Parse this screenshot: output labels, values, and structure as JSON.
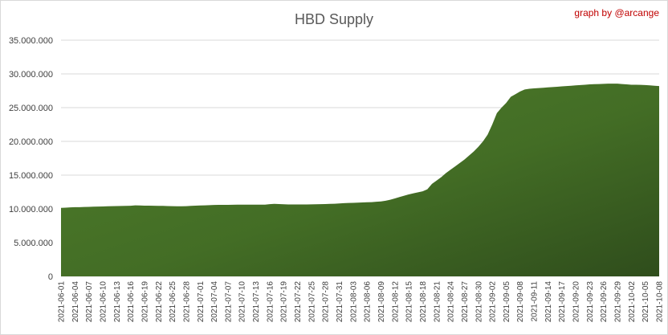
{
  "chart_data": {
    "type": "area",
    "title": "HBD Supply",
    "credit": "graph by @arcange",
    "xlabel": "",
    "ylabel": "",
    "ylim": [
      0,
      35000000
    ],
    "y_ticks": [
      0,
      5000000,
      10000000,
      15000000,
      20000000,
      25000000,
      30000000,
      35000000
    ],
    "y_tick_labels": [
      "0",
      "5.000.000",
      "10.000.000",
      "15.000.000",
      "20.000.000",
      "25.000.000",
      "30.000.000",
      "35.000.000"
    ],
    "grid": true,
    "legend": "none",
    "colors": {
      "fill_top": "#4e7d2b",
      "fill_bottom": "#2f4d1c",
      "gridline": "#d9d9d9",
      "title": "#595959",
      "credit": "#c00000"
    },
    "x_tick_labels": [
      "2021-06-01",
      "2021-06-04",
      "2021-06-07",
      "2021-06-10",
      "2021-06-13",
      "2021-06-16",
      "2021-06-19",
      "2021-06-22",
      "2021-06-25",
      "2021-06-28",
      "2021-07-01",
      "2021-07-04",
      "2021-07-07",
      "2021-07-10",
      "2021-07-13",
      "2021-07-16",
      "2021-07-19",
      "2021-07-22",
      "2021-07-25",
      "2021-07-28",
      "2021-07-31",
      "2021-08-03",
      "2021-08-06",
      "2021-08-09",
      "2021-08-12",
      "2021-08-15",
      "2021-08-18",
      "2021-08-21",
      "2021-08-24",
      "2021-08-27",
      "2021-08-30",
      "2021-09-02",
      "2021-09-05",
      "2021-09-08",
      "2021-09-11",
      "2021-09-14",
      "2021-09-17",
      "2021-09-20",
      "2021-09-23",
      "2021-09-26",
      "2021-09-29",
      "2021-10-02",
      "2021-10-05",
      "2021-10-08"
    ],
    "x": [
      "2021-06-01",
      "2021-06-02",
      "2021-06-03",
      "2021-06-04",
      "2021-06-05",
      "2021-06-06",
      "2021-06-07",
      "2021-06-08",
      "2021-06-09",
      "2021-06-10",
      "2021-06-11",
      "2021-06-12",
      "2021-06-13",
      "2021-06-14",
      "2021-06-15",
      "2021-06-16",
      "2021-06-17",
      "2021-06-18",
      "2021-06-19",
      "2021-06-20",
      "2021-06-21",
      "2021-06-22",
      "2021-06-23",
      "2021-06-24",
      "2021-06-25",
      "2021-06-26",
      "2021-06-27",
      "2021-06-28",
      "2021-06-29",
      "2021-06-30",
      "2021-07-01",
      "2021-07-02",
      "2021-07-03",
      "2021-07-04",
      "2021-07-05",
      "2021-07-06",
      "2021-07-07",
      "2021-07-08",
      "2021-07-09",
      "2021-07-10",
      "2021-07-11",
      "2021-07-12",
      "2021-07-13",
      "2021-07-14",
      "2021-07-15",
      "2021-07-16",
      "2021-07-17",
      "2021-07-18",
      "2021-07-19",
      "2021-07-20",
      "2021-07-21",
      "2021-07-22",
      "2021-07-23",
      "2021-07-24",
      "2021-07-25",
      "2021-07-26",
      "2021-07-27",
      "2021-07-28",
      "2021-07-29",
      "2021-07-30",
      "2021-07-31",
      "2021-08-01",
      "2021-08-02",
      "2021-08-03",
      "2021-08-04",
      "2021-08-05",
      "2021-08-06",
      "2021-08-07",
      "2021-08-08",
      "2021-08-09",
      "2021-08-10",
      "2021-08-11",
      "2021-08-12",
      "2021-08-13",
      "2021-08-14",
      "2021-08-15",
      "2021-08-16",
      "2021-08-17",
      "2021-08-18",
      "2021-08-19",
      "2021-08-20",
      "2021-08-21",
      "2021-08-22",
      "2021-08-23",
      "2021-08-24",
      "2021-08-25",
      "2021-08-26",
      "2021-08-27",
      "2021-08-28",
      "2021-08-29",
      "2021-08-30",
      "2021-08-31",
      "2021-09-01",
      "2021-09-02",
      "2021-09-03",
      "2021-09-04",
      "2021-09-05",
      "2021-09-06",
      "2021-09-07",
      "2021-09-08",
      "2021-09-09",
      "2021-09-10",
      "2021-09-11",
      "2021-09-12",
      "2021-09-13",
      "2021-09-14",
      "2021-09-15",
      "2021-09-16",
      "2021-09-17",
      "2021-09-18",
      "2021-09-19",
      "2021-09-20",
      "2021-09-21",
      "2021-09-22",
      "2021-09-23",
      "2021-09-24",
      "2021-09-25",
      "2021-09-26",
      "2021-09-27",
      "2021-09-28",
      "2021-09-29",
      "2021-09-30",
      "2021-10-01",
      "2021-10-02",
      "2021-10-03",
      "2021-10-04",
      "2021-10-05",
      "2021-10-06",
      "2021-10-07",
      "2021-10-08"
    ],
    "values": [
      10150000,
      10180000,
      10220000,
      10250000,
      10260000,
      10280000,
      10300000,
      10320000,
      10340000,
      10360000,
      10380000,
      10400000,
      10420000,
      10430000,
      10440000,
      10460000,
      10520000,
      10500000,
      10480000,
      10470000,
      10460000,
      10450000,
      10440000,
      10420000,
      10400000,
      10390000,
      10380000,
      10400000,
      10450000,
      10480000,
      10500000,
      10520000,
      10550000,
      10580000,
      10600000,
      10600000,
      10600000,
      10610000,
      10620000,
      10620000,
      10620000,
      10630000,
      10620000,
      10620000,
      10630000,
      10700000,
      10750000,
      10720000,
      10680000,
      10650000,
      10650000,
      10650000,
      10650000,
      10660000,
      10670000,
      10680000,
      10700000,
      10720000,
      10740000,
      10760000,
      10800000,
      10850000,
      10880000,
      10900000,
      10920000,
      10950000,
      10980000,
      11000000,
      11050000,
      11100000,
      11200000,
      11350000,
      11550000,
      11750000,
      11950000,
      12150000,
      12300000,
      12450000,
      12600000,
      12900000,
      13700000,
      14200000,
      14700000,
      15300000,
      15800000,
      16300000,
      16800000,
      17300000,
      17900000,
      18500000,
      19200000,
      20000000,
      21000000,
      22500000,
      24200000,
      25000000,
      25700000,
      26600000,
      27000000,
      27400000,
      27700000,
      27800000,
      27850000,
      27900000,
      27950000,
      28000000,
      28050000,
      28100000,
      28150000,
      28200000,
      28250000,
      28300000,
      28350000,
      28400000,
      28450000,
      28480000,
      28500000,
      28520000,
      28550000,
      28550000,
      28550000,
      28500000,
      28450000,
      28400000,
      28400000,
      28380000,
      28350000,
      28300000,
      28250000,
      28200000
    ]
  }
}
